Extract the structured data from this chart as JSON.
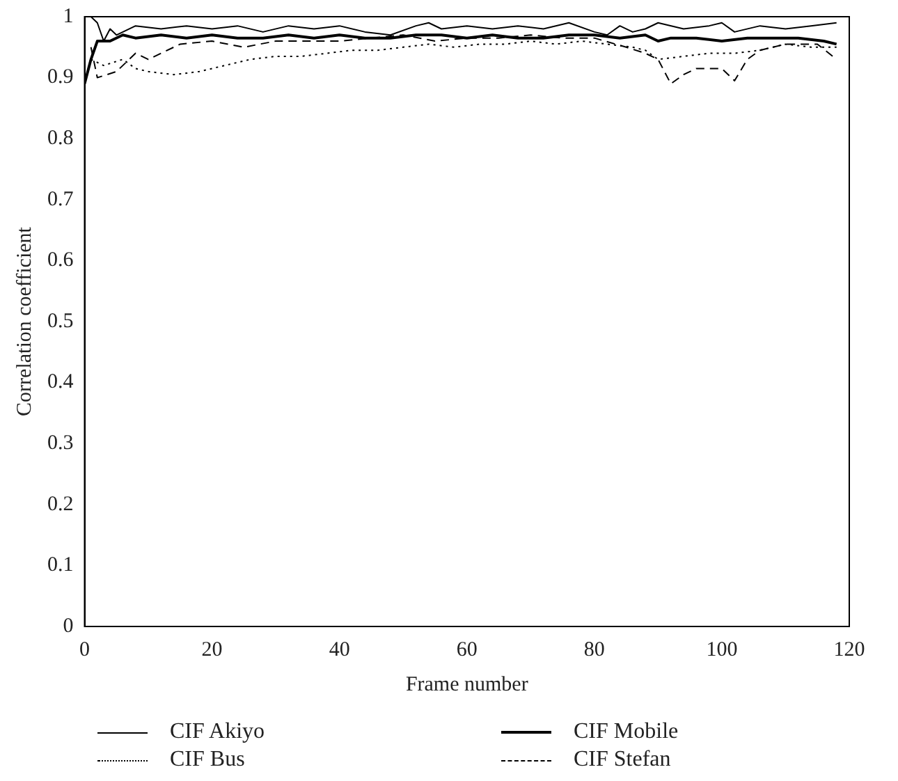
{
  "chart_data": {
    "type": "line",
    "xlabel": "Frame number",
    "ylabel": "Correlation coefficient",
    "xlim": [
      0,
      120
    ],
    "xticks": [
      0,
      20,
      40,
      60,
      80,
      100,
      120
    ],
    "ylim": [
      0,
      1
    ],
    "yticks": [
      0,
      0.1,
      0.2,
      0.3,
      0.4,
      0.5,
      0.6,
      0.7,
      0.8,
      0.9,
      1
    ],
    "grid": false,
    "legend": "bottom",
    "marker": "none",
    "series": [
      {
        "name": "CIF Akiyo",
        "color": "#000000",
        "line_style": "solid",
        "x": [
          1,
          2,
          3,
          4,
          5,
          8,
          12,
          16,
          20,
          24,
          28,
          32,
          36,
          40,
          44,
          48,
          52,
          54,
          56,
          60,
          64,
          68,
          72,
          76,
          80,
          82,
          84,
          86,
          88,
          90,
          94,
          98,
          100,
          102,
          106,
          110,
          114,
          118
        ],
        "values": [
          1.0,
          0.99,
          0.96,
          0.98,
          0.97,
          0.985,
          0.98,
          0.985,
          0.98,
          0.985,
          0.975,
          0.985,
          0.98,
          0.985,
          0.975,
          0.97,
          0.985,
          0.99,
          0.98,
          0.985,
          0.98,
          0.985,
          0.98,
          0.99,
          0.975,
          0.97,
          0.985,
          0.975,
          0.98,
          0.99,
          0.98,
          0.985,
          0.99,
          0.975,
          0.985,
          0.98,
          0.985,
          0.99
        ]
      },
      {
        "name": "CIF Mobile",
        "color": "#000000",
        "line_style": "solid",
        "x": [
          0,
          1,
          2,
          4,
          6,
          8,
          12,
          16,
          20,
          24,
          28,
          32,
          36,
          40,
          44,
          48,
          52,
          56,
          60,
          64,
          68,
          72,
          76,
          80,
          84,
          88,
          90,
          92,
          96,
          100,
          104,
          108,
          112,
          116,
          118
        ],
        "values": [
          0.89,
          0.93,
          0.96,
          0.96,
          0.97,
          0.965,
          0.97,
          0.965,
          0.97,
          0.965,
          0.965,
          0.97,
          0.965,
          0.97,
          0.965,
          0.965,
          0.97,
          0.97,
          0.965,
          0.97,
          0.965,
          0.965,
          0.97,
          0.97,
          0.965,
          0.97,
          0.96,
          0.965,
          0.965,
          0.96,
          0.965,
          0.965,
          0.965,
          0.96,
          0.955
        ]
      },
      {
        "name": "CIF Bus",
        "color": "#000000",
        "line_style": "dotted",
        "x": [
          1,
          3,
          6,
          8,
          10,
          14,
          18,
          22,
          26,
          30,
          34,
          38,
          42,
          46,
          50,
          54,
          58,
          62,
          66,
          70,
          74,
          78,
          82,
          86,
          88,
          90,
          94,
          98,
          102,
          106,
          110,
          114,
          118
        ],
        "values": [
          0.93,
          0.92,
          0.93,
          0.915,
          0.91,
          0.905,
          0.91,
          0.92,
          0.93,
          0.935,
          0.935,
          0.94,
          0.945,
          0.945,
          0.95,
          0.955,
          0.95,
          0.955,
          0.955,
          0.96,
          0.955,
          0.96,
          0.955,
          0.95,
          0.945,
          0.93,
          0.935,
          0.94,
          0.94,
          0.945,
          0.955,
          0.95,
          0.95
        ]
      },
      {
        "name": "CIF Stefan",
        "color": "#000000",
        "line_style": "dashed",
        "x": [
          1,
          2,
          5,
          8,
          10,
          15,
          20,
          25,
          30,
          35,
          40,
          45,
          50,
          55,
          60,
          65,
          70,
          75,
          80,
          85,
          88,
          90,
          92,
          94,
          96,
          100,
          102,
          104,
          106,
          110,
          115,
          118
        ],
        "values": [
          0.95,
          0.9,
          0.91,
          0.94,
          0.93,
          0.955,
          0.96,
          0.95,
          0.96,
          0.96,
          0.96,
          0.965,
          0.97,
          0.96,
          0.965,
          0.965,
          0.97,
          0.965,
          0.965,
          0.95,
          0.94,
          0.93,
          0.89,
          0.905,
          0.915,
          0.915,
          0.895,
          0.93,
          0.945,
          0.955,
          0.955,
          0.93
        ]
      }
    ]
  }
}
